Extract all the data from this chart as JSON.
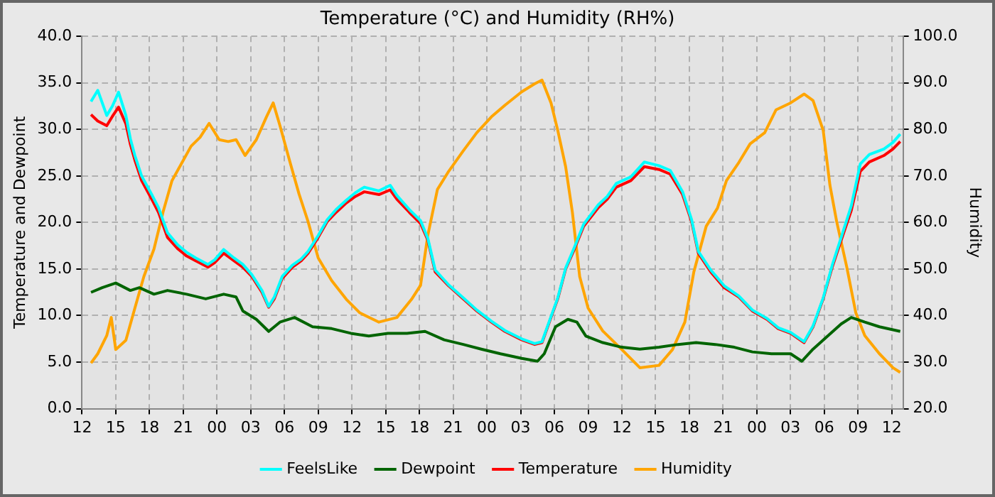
{
  "chart_data": {
    "type": "line",
    "title": "Temperature (°C) and Humidity (RH%)",
    "ylabel": "Temperature and Dewpoint",
    "y2label": "Humidity",
    "xlim": [
      12,
      85
    ],
    "xticks": [
      {
        "value": 12,
        "label": "12"
      },
      {
        "value": 15,
        "label": "15"
      },
      {
        "value": 18,
        "label": "18"
      },
      {
        "value": 21,
        "label": "21"
      },
      {
        "value": 24,
        "label": "00"
      },
      {
        "value": 27,
        "label": "03"
      },
      {
        "value": 30,
        "label": "06"
      },
      {
        "value": 33,
        "label": "09"
      },
      {
        "value": 36,
        "label": "12"
      },
      {
        "value": 39,
        "label": "15"
      },
      {
        "value": 42,
        "label": "18"
      },
      {
        "value": 45,
        "label": "21"
      },
      {
        "value": 48,
        "label": "00"
      },
      {
        "value": 51,
        "label": "03"
      },
      {
        "value": 54,
        "label": "06"
      },
      {
        "value": 57,
        "label": "09"
      },
      {
        "value": 60,
        "label": "12"
      },
      {
        "value": 63,
        "label": "15"
      },
      {
        "value": 66,
        "label": "18"
      },
      {
        "value": 69,
        "label": "21"
      },
      {
        "value": 72,
        "label": "00"
      },
      {
        "value": 75,
        "label": "03"
      },
      {
        "value": 78,
        "label": "06"
      },
      {
        "value": 81,
        "label": "09"
      },
      {
        "value": 84,
        "label": "12"
      }
    ],
    "ylim": [
      0,
      40
    ],
    "yticks": [
      {
        "value": 0,
        "label": "0.0"
      },
      {
        "value": 5,
        "label": "5.0"
      },
      {
        "value": 10,
        "label": "10.0"
      },
      {
        "value": 15,
        "label": "15.0"
      },
      {
        "value": 20,
        "label": "20.0"
      },
      {
        "value": 25,
        "label": "25.0"
      },
      {
        "value": 30,
        "label": "30.0"
      },
      {
        "value": 35,
        "label": "35.0"
      },
      {
        "value": 40,
        "label": "40.0"
      }
    ],
    "y2lim": [
      20,
      100
    ],
    "y2ticks": [
      {
        "value": 20,
        "label": "20.0"
      },
      {
        "value": 30,
        "label": "30.0"
      },
      {
        "value": 40,
        "label": "40.0"
      },
      {
        "value": 50,
        "label": "50.0"
      },
      {
        "value": 60,
        "label": "60.0"
      },
      {
        "value": 70,
        "label": "70.0"
      },
      {
        "value": 80,
        "label": "80.0"
      },
      {
        "value": 90,
        "label": "90.0"
      },
      {
        "value": 100,
        "label": "100.0"
      }
    ],
    "grid": true,
    "legend": "bottom",
    "marker": "none",
    "line_style": "solid",
    "series": [
      {
        "name": "FeelsLike",
        "color": "#00ffff",
        "x": [
          12.8,
          13.4,
          14.2,
          14.7,
          15.25,
          15.9,
          16.3,
          16.7,
          17.3,
          18.2,
          18.8,
          19.6,
          20.5,
          21.3,
          22.1,
          23.2,
          23.8,
          24.6,
          25.5,
          26.3,
          27.1,
          28,
          28.6,
          29.1,
          29.8,
          30.7,
          31.5,
          32.1,
          33,
          33.8,
          34.6,
          35.5,
          36.3,
          37.1,
          38.4,
          39.4,
          40,
          41.1,
          42.1,
          42.75,
          43.4,
          44.6,
          45.9,
          47.1,
          48.4,
          49.6,
          51.1,
          52.25,
          52.9,
          53.7,
          54.3,
          55,
          55.8,
          56.6,
          57.9,
          58.7,
          59.5,
          60.8,
          62,
          63.3,
          64.3,
          65.4,
          66.2,
          66.8,
          67.9,
          69.1,
          70.4,
          71.6,
          72.9,
          73.9,
          75,
          76.2,
          77,
          77.9,
          78.7,
          79.5,
          80.4,
          81.2,
          82,
          83.3,
          84.1,
          84.75
        ],
        "values": [
          33.0,
          34.2,
          31.5,
          32.5,
          34.0,
          31.5,
          29.0,
          27.2,
          25.0,
          23.0,
          21.6,
          18.9,
          17.6,
          16.8,
          16.2,
          15.5,
          16.0,
          17.1,
          16.2,
          15.5,
          14.4,
          12.7,
          11.0,
          12.0,
          14.2,
          15.4,
          16.1,
          16.9,
          18.6,
          20.3,
          21.4,
          22.4,
          23.2,
          23.8,
          23.4,
          24.0,
          22.9,
          21.4,
          20.2,
          18.3,
          14.9,
          13.3,
          11.9,
          10.6,
          9.4,
          8.4,
          7.5,
          7.0,
          7.2,
          9.9,
          11.9,
          15.1,
          17.4,
          19.8,
          21.9,
          22.8,
          24.2,
          24.9,
          26.5,
          26.1,
          25.6,
          23.3,
          20.3,
          16.9,
          14.9,
          13.2,
          12.1,
          10.6,
          9.7,
          8.7,
          8.2,
          7.2,
          8.9,
          11.9,
          15.4,
          18.4,
          21.8,
          26.3,
          27.3,
          27.9,
          28.6,
          29.5
        ]
      },
      {
        "name": "Dewpoint",
        "color": "#006400",
        "x": [
          12.8,
          13.8,
          15,
          16.3,
          17.1,
          18.4,
          19.6,
          21.3,
          23,
          24.6,
          25.7,
          26.3,
          27.5,
          28.6,
          29.6,
          30.9,
          32.5,
          34.2,
          35.9,
          37.5,
          39.2,
          40.9,
          42.5,
          44.2,
          45.9,
          47.5,
          49.2,
          51.1,
          52.5,
          53.1,
          54.1,
          55.2,
          56,
          56.8,
          58.3,
          60,
          61.6,
          63.3,
          65,
          66.6,
          68.3,
          70,
          71.6,
          73.3,
          75,
          76,
          77,
          78.3,
          79.5,
          80.4,
          81.6,
          82.9,
          84.75
        ],
        "values": [
          12.5,
          13.0,
          13.5,
          12.7,
          13.0,
          12.3,
          12.7,
          12.3,
          11.8,
          12.3,
          12.0,
          10.5,
          9.6,
          8.3,
          9.3,
          9.8,
          8.8,
          8.6,
          8.1,
          7.8,
          8.1,
          8.1,
          8.3,
          7.4,
          6.9,
          6.4,
          5.9,
          5.4,
          5.1,
          5.9,
          8.8,
          9.6,
          9.3,
          7.8,
          7.1,
          6.6,
          6.4,
          6.6,
          6.9,
          7.1,
          6.9,
          6.6,
          6.1,
          5.9,
          5.9,
          5.1,
          6.4,
          7.8,
          9.1,
          9.8,
          9.3,
          8.8,
          8.3
        ]
      },
      {
        "name": "Temperature",
        "color": "#ff0000",
        "x": [
          12.8,
          13.4,
          14.2,
          14.7,
          15.25,
          15.9,
          16.3,
          16.7,
          17.3,
          18.2,
          18.8,
          19.6,
          20.5,
          21.3,
          22.1,
          23.2,
          23.8,
          24.6,
          25.5,
          26.3,
          27.1,
          28,
          28.6,
          29.1,
          29.8,
          30.7,
          31.5,
          32.1,
          33,
          33.8,
          34.6,
          35.5,
          36.3,
          37.1,
          38.4,
          39.4,
          40,
          41.1,
          42.1,
          42.75,
          43.4,
          44.6,
          45.9,
          47.1,
          48.4,
          49.6,
          51.1,
          52.25,
          52.9,
          53.7,
          54.3,
          55,
          55.8,
          56.6,
          57.9,
          58.7,
          59.5,
          60.8,
          62,
          63.3,
          64.3,
          65.4,
          66.2,
          66.8,
          67.9,
          69.1,
          70.4,
          71.6,
          72.9,
          73.9,
          75,
          76.2,
          77,
          77.9,
          78.7,
          79.5,
          80.4,
          81.2,
          82,
          83.3,
          84.1,
          84.75
        ],
        "values": [
          31.6,
          30.9,
          30.4,
          31.4,
          32.4,
          30.6,
          28.4,
          26.7,
          24.5,
          22.5,
          21.1,
          18.4,
          17.2,
          16.4,
          15.9,
          15.2,
          15.7,
          16.7,
          15.9,
          15.2,
          14.2,
          12.5,
          10.9,
          11.8,
          14.0,
          15.2,
          15.9,
          16.7,
          18.4,
          20.1,
          21.1,
          22.1,
          22.8,
          23.3,
          23.0,
          23.5,
          22.5,
          21.1,
          19.9,
          18.1,
          14.7,
          13.2,
          11.8,
          10.5,
          9.3,
          8.3,
          7.4,
          6.9,
          7.1,
          9.8,
          11.8,
          15.0,
          17.2,
          19.6,
          21.6,
          22.5,
          23.8,
          24.5,
          26.0,
          25.7,
          25.2,
          23.0,
          20.1,
          16.7,
          14.7,
          13.0,
          12.0,
          10.5,
          9.6,
          8.6,
          8.1,
          7.1,
          8.8,
          11.8,
          15.2,
          18.1,
          21.3,
          25.5,
          26.5,
          27.2,
          27.9,
          28.7
        ]
      },
      {
        "name": "Humidity",
        "color": "#ffa500",
        "axis": "y2",
        "x": [
          12.8,
          13.4,
          14.2,
          14.6,
          15,
          15.9,
          16.7,
          17.5,
          18.4,
          19.2,
          20,
          20.9,
          21.7,
          22.5,
          23.3,
          24.2,
          25,
          25.7,
          26.5,
          27.5,
          28.4,
          29,
          29.6,
          30.5,
          31.3,
          32.1,
          33,
          34.2,
          35.5,
          36.7,
          38.4,
          40,
          41.3,
          42.1,
          42.75,
          43.6,
          44.6,
          45.9,
          47.1,
          48.4,
          49.6,
          51.1,
          52.25,
          52.9,
          53.7,
          54.3,
          55,
          55.6,
          56.25,
          57,
          58.3,
          60,
          61.6,
          63.3,
          64.5,
          65.6,
          66.4,
          67.5,
          68.5,
          69.3,
          70.4,
          71.4,
          72.7,
          73.7,
          75,
          76.2,
          77,
          77.9,
          78.5,
          79.1,
          80,
          80.8,
          81.6,
          82.9,
          84.1,
          84.75
        ],
        "values": [
          29.8,
          31.8,
          35.7,
          39.6,
          32.7,
          34.7,
          41.6,
          48.4,
          54.3,
          62.2,
          69.0,
          72.9,
          76.4,
          78.3,
          81.3,
          77.8,
          77.4,
          77.8,
          74.4,
          77.8,
          82.7,
          85.7,
          80.8,
          72.9,
          66.1,
          60.2,
          52.4,
          47.5,
          43.5,
          40.6,
          38.6,
          39.6,
          43.5,
          46.5,
          57.3,
          67.1,
          71.0,
          75.4,
          79.3,
          82.7,
          85.2,
          88.1,
          89.8,
          90.6,
          85.7,
          79.8,
          72.0,
          62.2,
          48.4,
          41.6,
          36.7,
          32.7,
          28.8,
          29.3,
          32.7,
          38.6,
          49.4,
          59.2,
          63.1,
          69.0,
          72.9,
          76.9,
          79.3,
          84.2,
          85.7,
          87.6,
          86.2,
          79.8,
          68.0,
          60.2,
          50.4,
          40.6,
          35.7,
          31.8,
          28.8,
          27.8
        ]
      }
    ]
  }
}
